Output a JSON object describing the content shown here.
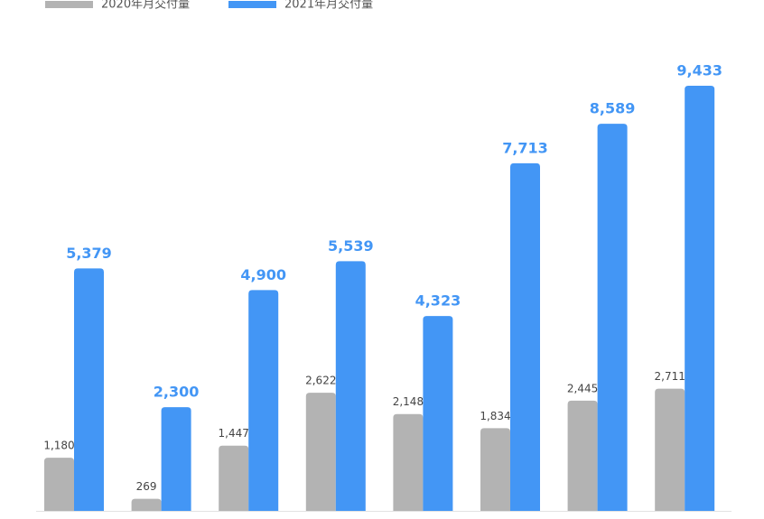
{
  "chart_data": {
    "type": "bar",
    "categories": [
      null,
      null,
      null,
      null,
      null,
      null,
      null,
      null
    ],
    "series": [
      {
        "name": "2020年月交付量",
        "color": "#b3b3b3",
        "values": [
          1180,
          269,
          1447,
          2622,
          2148,
          1834,
          2445,
          2711
        ],
        "value_labels": [
          "1,180",
          "269",
          "1,447",
          "2,622",
          "2,148",
          "1,834",
          "2,445",
          "2,711"
        ]
      },
      {
        "name": "2021年月交付量",
        "color": "#4396f5",
        "values": [
          5379,
          2300,
          4900,
          5539,
          4323,
          7713,
          8589,
          9433
        ],
        "value_labels": [
          "5,379",
          "2,300",
          "4,900",
          "5,539",
          "4,323",
          "7,713",
          "8,589",
          "9,433"
        ]
      }
    ]
  }
}
